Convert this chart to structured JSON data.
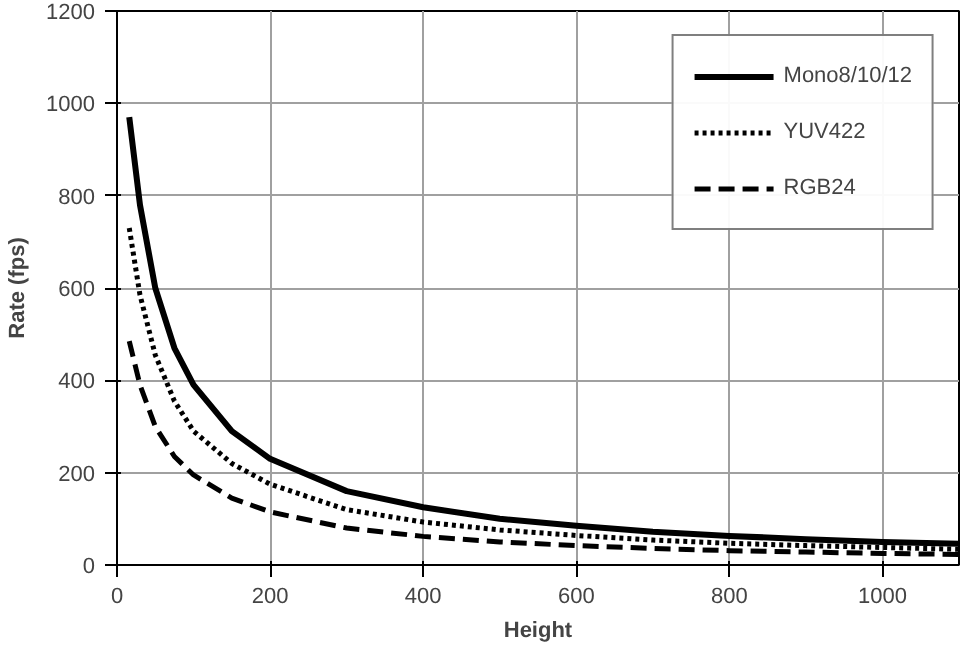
{
  "chart_data": {
    "type": "line",
    "xlabel": "Height",
    "ylabel": "Rate (fps)",
    "x": [
      16,
      30,
      50,
      75,
      100,
      150,
      200,
      300,
      400,
      500,
      600,
      700,
      800,
      900,
      1000,
      1100
    ],
    "series": [
      {
        "name": "Mono8/10/12",
        "color": "#000000",
        "line_style": "solid",
        "values": [
          970,
          780,
          600,
          470,
          390,
          290,
          230,
          160,
          125,
          100,
          85,
          72,
          63,
          56,
          50,
          46
        ]
      },
      {
        "name": "YUV422",
        "color": "#000000",
        "line_style": "dotted",
        "values": [
          730,
          585,
          455,
          355,
          290,
          220,
          175,
          120,
          93,
          76,
          64,
          54,
          47,
          42,
          38,
          34
        ]
      },
      {
        "name": "RGB24",
        "color": "#000000",
        "line_style": "dashed",
        "values": [
          485,
          390,
          300,
          235,
          195,
          145,
          115,
          80,
          62,
          50,
          42,
          36,
          31,
          28,
          25,
          23
        ]
      }
    ],
    "xlim": [
      0,
      1100
    ],
    "xticks": [
      0,
      200,
      400,
      600,
      800,
      1000
    ],
    "ylim": [
      0,
      1200
    ],
    "yticks": [
      0,
      200,
      400,
      600,
      800,
      1000,
      1200
    ],
    "grid": true,
    "legend": "top right",
    "marker": "none"
  }
}
